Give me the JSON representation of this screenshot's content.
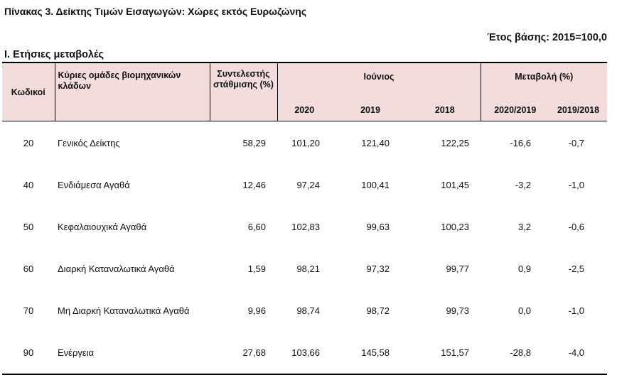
{
  "title": "Πίνακας 3. Δείκτης Τιμών Εισαγωγών: Χώρες εκτός Ευρωζώνης",
  "base_year": "Έτος βάσης: 2015=100,0",
  "section": "Ι. Ετήσιες μεταβολές",
  "headers": {
    "code": "Κωδικοί",
    "groups": "Κύριες ομάδες βιομηχανικών κλάδων",
    "weight": "Συντελεστής στάθμισης (%)",
    "june": "Ιούνιος",
    "change": "Μεταβολή (%)",
    "y2020": "2020",
    "y2019": "2019",
    "y2018": "2018",
    "ch1": "2020/2019",
    "ch2": "2019/2018"
  },
  "rows": [
    {
      "code": "20",
      "name": "Γενικός Δείκτης",
      "weight": "58,29",
      "v2020": "101,20",
      "v2019": "121,40",
      "v2018": "122,25",
      "ch1": "-16,6",
      "ch2": "-0,7"
    },
    {
      "code": "40",
      "name": "Ενδιάμεσα Αγαθά",
      "weight": "12,46",
      "v2020": "97,24",
      "v2019": "100,41",
      "v2018": "101,45",
      "ch1": "-3,2",
      "ch2": "-1,0"
    },
    {
      "code": "50",
      "name": "Κεφαλαιουχικά Αγαθά",
      "weight": "6,60",
      "v2020": "102,83",
      "v2019": "99,63",
      "v2018": "100,23",
      "ch1": "3,2",
      "ch2": "-0,6"
    },
    {
      "code": "60",
      "name": "Διαρκή Καταναλωτικά Αγαθά",
      "weight": "1,59",
      "v2020": "98,21",
      "v2019": "97,32",
      "v2018": "99,77",
      "ch1": "0,9",
      "ch2": "-2,5"
    },
    {
      "code": "70",
      "name": "Μη Διαρκή Καταναλωτικά Αγαθά",
      "weight": "9,96",
      "v2020": "98,74",
      "v2019": "98,72",
      "v2018": "99,73",
      "ch1": "0,0",
      "ch2": "-1,0"
    },
    {
      "code": "90",
      "name": "Ενέργεια",
      "weight": "27,68",
      "v2020": "103,66",
      "v2019": "145,58",
      "v2018": "151,57",
      "ch1": "-28,8",
      "ch2": "-4,0"
    }
  ]
}
